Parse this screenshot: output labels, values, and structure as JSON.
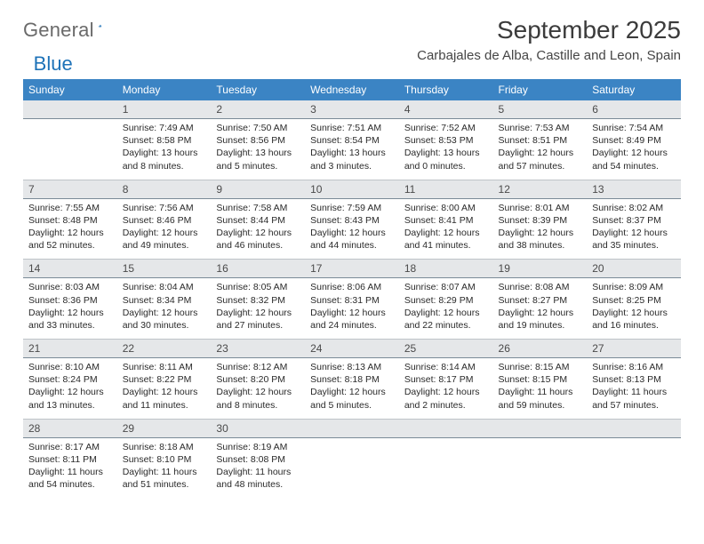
{
  "logo": {
    "text1": "General",
    "text2": "Blue"
  },
  "title": "September 2025",
  "location": "Carbajales de Alba, Castille and Leon, Spain",
  "colors": {
    "header_bg": "#3b84c4",
    "row_gray": "#e5e7e9"
  },
  "daysOfWeek": [
    "Sunday",
    "Monday",
    "Tuesday",
    "Wednesday",
    "Thursday",
    "Friday",
    "Saturday"
  ],
  "weeks": [
    {
      "nums": [
        "",
        "1",
        "2",
        "3",
        "4",
        "5",
        "6"
      ],
      "cells": [
        {
          "empty": true
        },
        {
          "sunrise": "Sunrise: 7:49 AM",
          "sunset": "Sunset: 8:58 PM",
          "day1": "Daylight: 13 hours",
          "day2": "and 8 minutes."
        },
        {
          "sunrise": "Sunrise: 7:50 AM",
          "sunset": "Sunset: 8:56 PM",
          "day1": "Daylight: 13 hours",
          "day2": "and 5 minutes."
        },
        {
          "sunrise": "Sunrise: 7:51 AM",
          "sunset": "Sunset: 8:54 PM",
          "day1": "Daylight: 13 hours",
          "day2": "and 3 minutes."
        },
        {
          "sunrise": "Sunrise: 7:52 AM",
          "sunset": "Sunset: 8:53 PM",
          "day1": "Daylight: 13 hours",
          "day2": "and 0 minutes."
        },
        {
          "sunrise": "Sunrise: 7:53 AM",
          "sunset": "Sunset: 8:51 PM",
          "day1": "Daylight: 12 hours",
          "day2": "and 57 minutes."
        },
        {
          "sunrise": "Sunrise: 7:54 AM",
          "sunset": "Sunset: 8:49 PM",
          "day1": "Daylight: 12 hours",
          "day2": "and 54 minutes."
        }
      ]
    },
    {
      "nums": [
        "7",
        "8",
        "9",
        "10",
        "11",
        "12",
        "13"
      ],
      "cells": [
        {
          "sunrise": "Sunrise: 7:55 AM",
          "sunset": "Sunset: 8:48 PM",
          "day1": "Daylight: 12 hours",
          "day2": "and 52 minutes."
        },
        {
          "sunrise": "Sunrise: 7:56 AM",
          "sunset": "Sunset: 8:46 PM",
          "day1": "Daylight: 12 hours",
          "day2": "and 49 minutes."
        },
        {
          "sunrise": "Sunrise: 7:58 AM",
          "sunset": "Sunset: 8:44 PM",
          "day1": "Daylight: 12 hours",
          "day2": "and 46 minutes."
        },
        {
          "sunrise": "Sunrise: 7:59 AM",
          "sunset": "Sunset: 8:43 PM",
          "day1": "Daylight: 12 hours",
          "day2": "and 44 minutes."
        },
        {
          "sunrise": "Sunrise: 8:00 AM",
          "sunset": "Sunset: 8:41 PM",
          "day1": "Daylight: 12 hours",
          "day2": "and 41 minutes."
        },
        {
          "sunrise": "Sunrise: 8:01 AM",
          "sunset": "Sunset: 8:39 PM",
          "day1": "Daylight: 12 hours",
          "day2": "and 38 minutes."
        },
        {
          "sunrise": "Sunrise: 8:02 AM",
          "sunset": "Sunset: 8:37 PM",
          "day1": "Daylight: 12 hours",
          "day2": "and 35 minutes."
        }
      ]
    },
    {
      "nums": [
        "14",
        "15",
        "16",
        "17",
        "18",
        "19",
        "20"
      ],
      "cells": [
        {
          "sunrise": "Sunrise: 8:03 AM",
          "sunset": "Sunset: 8:36 PM",
          "day1": "Daylight: 12 hours",
          "day2": "and 33 minutes."
        },
        {
          "sunrise": "Sunrise: 8:04 AM",
          "sunset": "Sunset: 8:34 PM",
          "day1": "Daylight: 12 hours",
          "day2": "and 30 minutes."
        },
        {
          "sunrise": "Sunrise: 8:05 AM",
          "sunset": "Sunset: 8:32 PM",
          "day1": "Daylight: 12 hours",
          "day2": "and 27 minutes."
        },
        {
          "sunrise": "Sunrise: 8:06 AM",
          "sunset": "Sunset: 8:31 PM",
          "day1": "Daylight: 12 hours",
          "day2": "and 24 minutes."
        },
        {
          "sunrise": "Sunrise: 8:07 AM",
          "sunset": "Sunset: 8:29 PM",
          "day1": "Daylight: 12 hours",
          "day2": "and 22 minutes."
        },
        {
          "sunrise": "Sunrise: 8:08 AM",
          "sunset": "Sunset: 8:27 PM",
          "day1": "Daylight: 12 hours",
          "day2": "and 19 minutes."
        },
        {
          "sunrise": "Sunrise: 8:09 AM",
          "sunset": "Sunset: 8:25 PM",
          "day1": "Daylight: 12 hours",
          "day2": "and 16 minutes."
        }
      ]
    },
    {
      "nums": [
        "21",
        "22",
        "23",
        "24",
        "25",
        "26",
        "27"
      ],
      "cells": [
        {
          "sunrise": "Sunrise: 8:10 AM",
          "sunset": "Sunset: 8:24 PM",
          "day1": "Daylight: 12 hours",
          "day2": "and 13 minutes."
        },
        {
          "sunrise": "Sunrise: 8:11 AM",
          "sunset": "Sunset: 8:22 PM",
          "day1": "Daylight: 12 hours",
          "day2": "and 11 minutes."
        },
        {
          "sunrise": "Sunrise: 8:12 AM",
          "sunset": "Sunset: 8:20 PM",
          "day1": "Daylight: 12 hours",
          "day2": "and 8 minutes."
        },
        {
          "sunrise": "Sunrise: 8:13 AM",
          "sunset": "Sunset: 8:18 PM",
          "day1": "Daylight: 12 hours",
          "day2": "and 5 minutes."
        },
        {
          "sunrise": "Sunrise: 8:14 AM",
          "sunset": "Sunset: 8:17 PM",
          "day1": "Daylight: 12 hours",
          "day2": "and 2 minutes."
        },
        {
          "sunrise": "Sunrise: 8:15 AM",
          "sunset": "Sunset: 8:15 PM",
          "day1": "Daylight: 11 hours",
          "day2": "and 59 minutes."
        },
        {
          "sunrise": "Sunrise: 8:16 AM",
          "sunset": "Sunset: 8:13 PM",
          "day1": "Daylight: 11 hours",
          "day2": "and 57 minutes."
        }
      ]
    },
    {
      "nums": [
        "28",
        "29",
        "30",
        "",
        "",
        "",
        ""
      ],
      "cells": [
        {
          "sunrise": "Sunrise: 8:17 AM",
          "sunset": "Sunset: 8:11 PM",
          "day1": "Daylight: 11 hours",
          "day2": "and 54 minutes."
        },
        {
          "sunrise": "Sunrise: 8:18 AM",
          "sunset": "Sunset: 8:10 PM",
          "day1": "Daylight: 11 hours",
          "day2": "and 51 minutes."
        },
        {
          "sunrise": "Sunrise: 8:19 AM",
          "sunset": "Sunset: 8:08 PM",
          "day1": "Daylight: 11 hours",
          "day2": "and 48 minutes."
        },
        {
          "empty": true
        },
        {
          "empty": true
        },
        {
          "empty": true
        },
        {
          "empty": true
        }
      ],
      "last": true
    }
  ]
}
